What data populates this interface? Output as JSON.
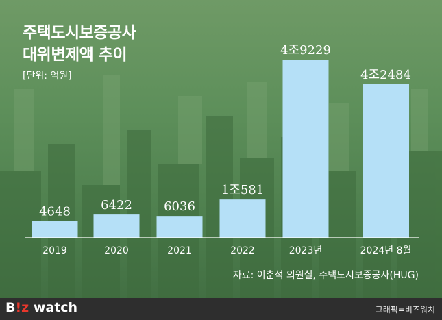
{
  "title_line1": "주택도시보증공사",
  "title_line2": "대위변제액 추이",
  "unit": "[단위: 억원]",
  "source": "자료: 이춘석 의원실, 주택도시보증공사(HUG)",
  "logo": {
    "part1": "B",
    "part2": "!z",
    "part3": " watch"
  },
  "credit": "그래픽=비즈워치",
  "colors": {
    "bar": "#b5e0f7",
    "baseline": "#ffffff",
    "text": "#ffffff"
  },
  "chart_data": {
    "type": "bar",
    "categories": [
      "2019",
      "2020",
      "2021",
      "2022",
      "2023년",
      "2024년 8월"
    ],
    "values": [
      4648,
      6422,
      6036,
      10581,
      49229,
      42484
    ],
    "labels": [
      "4648",
      "6422",
      "6036",
      "1조581",
      "4조9229",
      "4조2484"
    ],
    "title": "주택도시보증공사 대위변제액 추이",
    "unit": "억원",
    "ylim": [
      0,
      54000
    ]
  }
}
